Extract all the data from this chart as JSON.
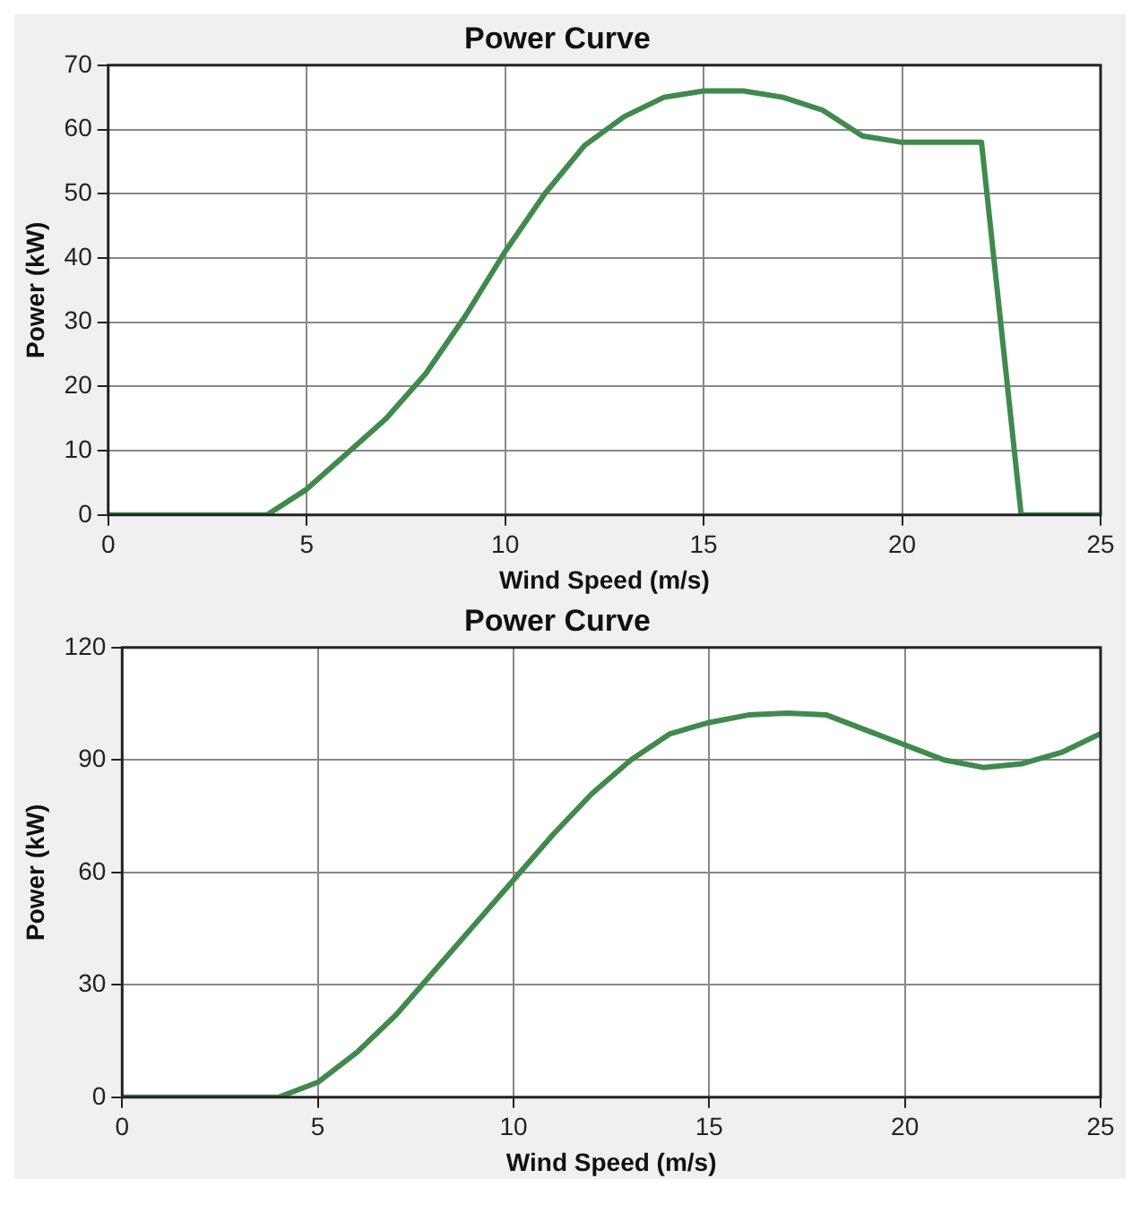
{
  "chart_data": [
    {
      "type": "line",
      "title": "Power Curve",
      "xlabel": "Wind Speed (m/s)",
      "ylabel": "Power (kW)",
      "color": "#3f8a4c",
      "marker": "none",
      "grid": true,
      "x": [
        0,
        4,
        5,
        6,
        7,
        8,
        9,
        10,
        11,
        12,
        13,
        14,
        15,
        16,
        17,
        18,
        19,
        20,
        22,
        23,
        25
      ],
      "values": [
        0,
        0,
        4,
        9.5,
        15,
        22,
        31,
        41,
        50,
        57.5,
        62,
        65,
        66,
        66,
        65,
        63,
        59,
        58,
        58,
        0,
        0
      ],
      "xlim": [
        0,
        25
      ],
      "xticks": [
        0,
        5,
        10,
        15,
        20,
        25
      ],
      "ylim": [
        0,
        70
      ],
      "yticks": [
        0,
        10,
        20,
        30,
        40,
        50,
        60,
        70
      ]
    },
    {
      "type": "line",
      "title": "Power Curve",
      "xlabel": "Wind Speed (m/s)",
      "ylabel": "Power (kW)",
      "color": "#3f8a4c",
      "marker": "none",
      "grid": true,
      "x": [
        0,
        4,
        5,
        6,
        7,
        8,
        9,
        10,
        11,
        12,
        13,
        14,
        15,
        16,
        17,
        18,
        19,
        20,
        21,
        22,
        23,
        24,
        25
      ],
      "values": [
        0,
        0,
        4,
        12,
        22,
        34,
        46,
        58,
        70,
        81,
        90,
        97,
        100,
        102,
        102.5,
        102,
        98,
        94,
        90,
        88,
        89,
        92,
        97
      ],
      "xlim": [
        0,
        25
      ],
      "xticks": [
        0,
        5,
        10,
        15,
        20,
        25
      ],
      "ylim": [
        0,
        120
      ],
      "yticks": [
        0,
        30,
        60,
        90,
        120
      ]
    }
  ]
}
